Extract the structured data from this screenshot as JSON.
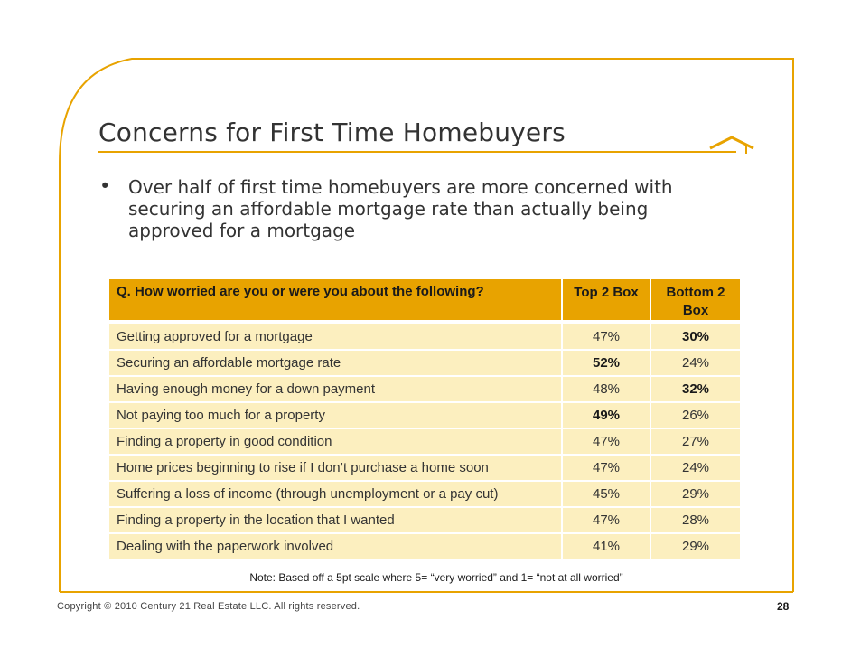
{
  "slide": {
    "title": "Concerns for First Time Homebuyers",
    "bullet_symbol": "•",
    "bullet_text": "Over half of first time homebuyers are more concerned with securing an affordable mortgage rate than actually being approved for a mortgage",
    "accent_color": "#e8a300",
    "row_color": "#fcefbf"
  },
  "table": {
    "header_question": "Q. How worried are you  or were you about the following?",
    "header_top2": "Top 2 Box",
    "header_bottom2": "Bottom 2 Box",
    "rows": [
      {
        "label": "Getting approved for a mortgage",
        "top2": "47%",
        "bottom2": "30%",
        "top2_bold": false,
        "bottom2_bold": true
      },
      {
        "label": "Securing an affordable mortgage rate",
        "top2": "52%",
        "bottom2": "24%",
        "top2_bold": true,
        "bottom2_bold": false
      },
      {
        "label": "Having enough money for a down payment",
        "top2": "48%",
        "bottom2": "32%",
        "top2_bold": false,
        "bottom2_bold": true
      },
      {
        "label": "Not paying too much for a property",
        "top2": "49%",
        "bottom2": "26%",
        "top2_bold": true,
        "bottom2_bold": false
      },
      {
        "label": "Finding a property in good condition",
        "top2": "47%",
        "bottom2": "27%",
        "top2_bold": false,
        "bottom2_bold": false
      },
      {
        "label": "Home prices beginning to rise if I don’t purchase a home soon",
        "top2": "47%",
        "bottom2": "24%",
        "top2_bold": false,
        "bottom2_bold": false
      },
      {
        "label": "Suffering a loss of income (through unemployment or a pay cut)",
        "top2": "45%",
        "bottom2": "29%",
        "top2_bold": false,
        "bottom2_bold": false
      },
      {
        "label": "Finding a property in the location that I wanted",
        "top2": "47%",
        "bottom2": "28%",
        "top2_bold": false,
        "bottom2_bold": false
      },
      {
        "label": "Dealing with the paperwork involved",
        "top2": "41%",
        "bottom2": "29%",
        "top2_bold": false,
        "bottom2_bold": false
      }
    ]
  },
  "footer": {
    "note": "Note: Based off a 5pt scale where 5= “very worried” and 1= “not at all worried”",
    "copyright": "Copyright © 2010 Century 21 Real Estate LLC. All rights reserved.",
    "page_number": "28"
  },
  "icons": {
    "frame": "rounded-frame-decoration",
    "logo": "house-roof-icon"
  }
}
